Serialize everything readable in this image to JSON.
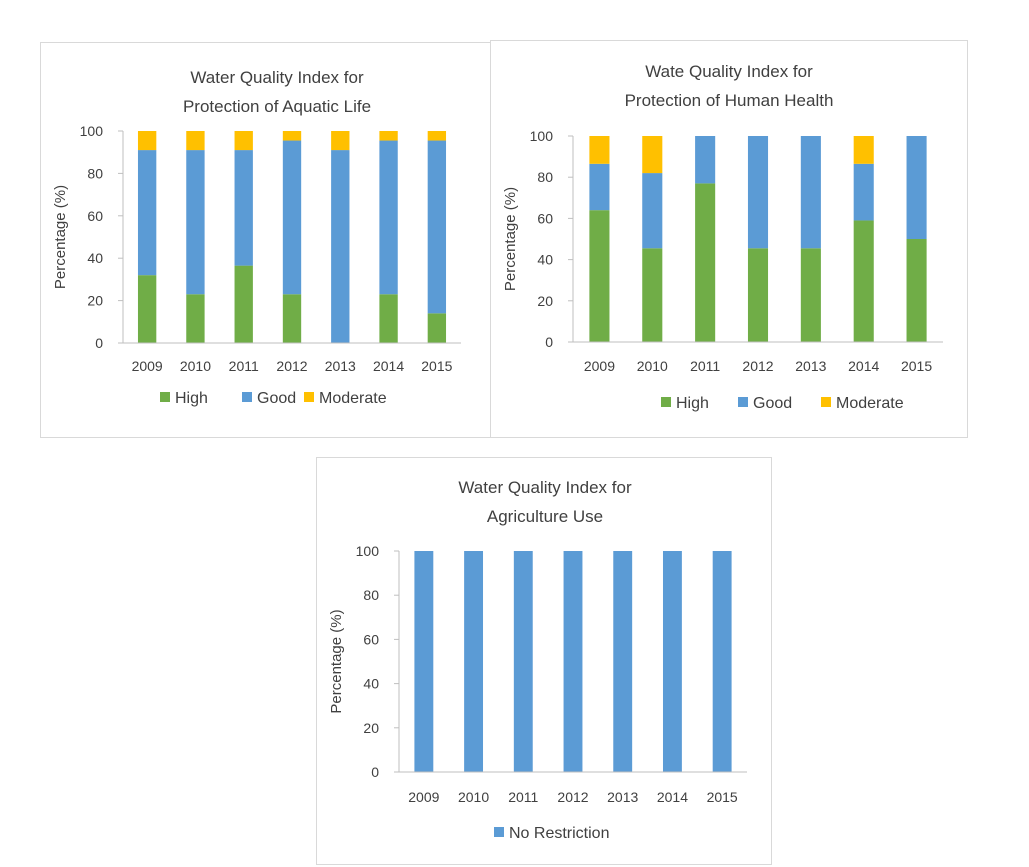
{
  "chart_data": [
    {
      "type": "bar",
      "stacked": true,
      "title": [
        "Water Quality Index for",
        "Protection of Aquatic Life"
      ],
      "xlabel": "",
      "ylabel": "Percentage (%)",
      "ylim": [
        0,
        100
      ],
      "yticks": [
        0,
        20,
        40,
        60,
        80,
        100
      ],
      "categories": [
        "2009",
        "2010",
        "2011",
        "2012",
        "2013",
        "2014",
        "2015"
      ],
      "series": [
        {
          "name": "High",
          "color": "#70ad47",
          "values": [
            32,
            23,
            36.5,
            23,
            0,
            23,
            14
          ]
        },
        {
          "name": "Good",
          "color": "#5b9bd5",
          "values": [
            59,
            68,
            54.5,
            72.5,
            91,
            72.5,
            81.5
          ]
        },
        {
          "name": "Moderate",
          "color": "#ffc000",
          "values": [
            9,
            9,
            9,
            4.5,
            9,
            4.5,
            4.5
          ]
        }
      ],
      "legend": "bottom"
    },
    {
      "type": "bar",
      "stacked": true,
      "title": [
        "Wate Quality Index for",
        "Protection of Human Health"
      ],
      "xlabel": "",
      "ylabel": "Percentage (%)",
      "ylim": [
        0,
        100
      ],
      "yticks": [
        0,
        20,
        40,
        60,
        80,
        100
      ],
      "categories": [
        "2009",
        "2010",
        "2011",
        "2012",
        "2013",
        "2014",
        "2015"
      ],
      "series": [
        {
          "name": "High",
          "color": "#70ad47",
          "values": [
            64,
            45.5,
            77,
            45.5,
            45.5,
            59,
            50
          ]
        },
        {
          "name": "Good",
          "color": "#5b9bd5",
          "values": [
            22.5,
            36.5,
            23,
            54.5,
            54.5,
            27.5,
            50
          ]
        },
        {
          "name": "Moderate",
          "color": "#ffc000",
          "values": [
            13.5,
            18,
            0,
            0,
            0,
            13.5,
            0
          ]
        }
      ],
      "legend": "bottom"
    },
    {
      "type": "bar",
      "stacked": true,
      "title": [
        "Water Quality Index for",
        "Agriculture Use"
      ],
      "xlabel": "",
      "ylabel": "Percentage (%)",
      "ylim": [
        0,
        100
      ],
      "yticks": [
        0,
        20,
        40,
        60,
        80,
        100
      ],
      "categories": [
        "2009",
        "2010",
        "2011",
        "2012",
        "2013",
        "2014",
        "2015"
      ],
      "series": [
        {
          "name": "No Restriction",
          "color": "#5b9bd5",
          "values": [
            100,
            100,
            100,
            100,
            100,
            100,
            100
          ]
        }
      ],
      "legend": "bottom"
    }
  ]
}
